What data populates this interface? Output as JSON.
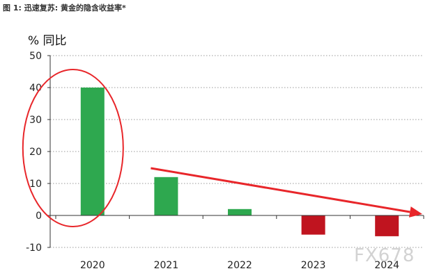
{
  "chart_data": {
    "type": "bar",
    "title": "图 1: 迅速复苏: 黄金的隐含收益率*",
    "ylabel": "% 同比",
    "xlabel": "",
    "categories": [
      "2020",
      "2021",
      "2022",
      "2023",
      "2024"
    ],
    "values": [
      40,
      12,
      2,
      -6,
      -6.5
    ],
    "ylim": [
      -10,
      50
    ],
    "yticks": [
      50,
      40,
      30,
      20,
      10,
      0,
      -10
    ],
    "grid": "horizontal-dotted",
    "colors": {
      "positive": "#2ea84f",
      "negative": "#c0141f",
      "annotation": "#e8262a"
    },
    "annotations": [
      {
        "type": "ellipse",
        "target": "2020"
      },
      {
        "type": "arrow",
        "from": "2021",
        "to": "2024",
        "direction": "down-right"
      }
    ],
    "watermark": "FX678"
  }
}
